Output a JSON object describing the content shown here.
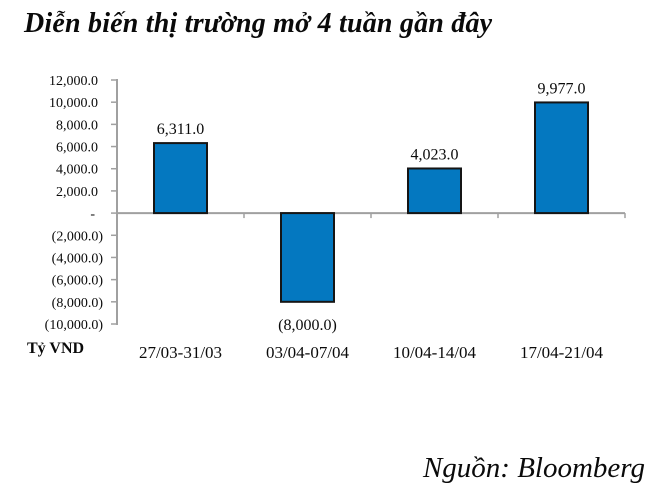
{
  "page": {
    "title": "Diễn biến thị trường mở 4 tuần gần đây",
    "source_note": "Nguồn: Bloomberg"
  },
  "chart_data": {
    "type": "bar",
    "title": "Diễn biến thị trường mở 4 tuần gần đây",
    "unit_label": "Tỷ VND",
    "categories": [
      "27/03-31/03",
      "03/04-07/04",
      "10/04-14/04",
      "17/04-21/04"
    ],
    "values": [
      6311,
      -8000,
      4023,
      9977
    ],
    "data_labels": [
      "6,311.0",
      "(8,000.0)",
      "4,023.0",
      "9,977.0"
    ],
    "y_ticks": [
      12000,
      10000,
      8000,
      6000,
      4000,
      2000,
      0,
      -2000,
      -4000,
      -6000,
      -8000,
      -10000
    ],
    "y_tick_labels": [
      "12,000.0",
      "10,000.0",
      "8,000.0",
      "6,000.0",
      "4,000.0",
      "2,000.0",
      "-",
      "(2,000.0)",
      "(4,000.0)",
      "(6,000.0)",
      "(8,000.0)",
      "(10,000.0)"
    ],
    "ylim": [
      -10000,
      12000
    ],
    "grid": false,
    "legend": false,
    "bar_color": "#0478C0",
    "bar_border_color": "#151515",
    "axis_color": "#A0A0A0",
    "source": "Nguồn: Bloomberg"
  }
}
